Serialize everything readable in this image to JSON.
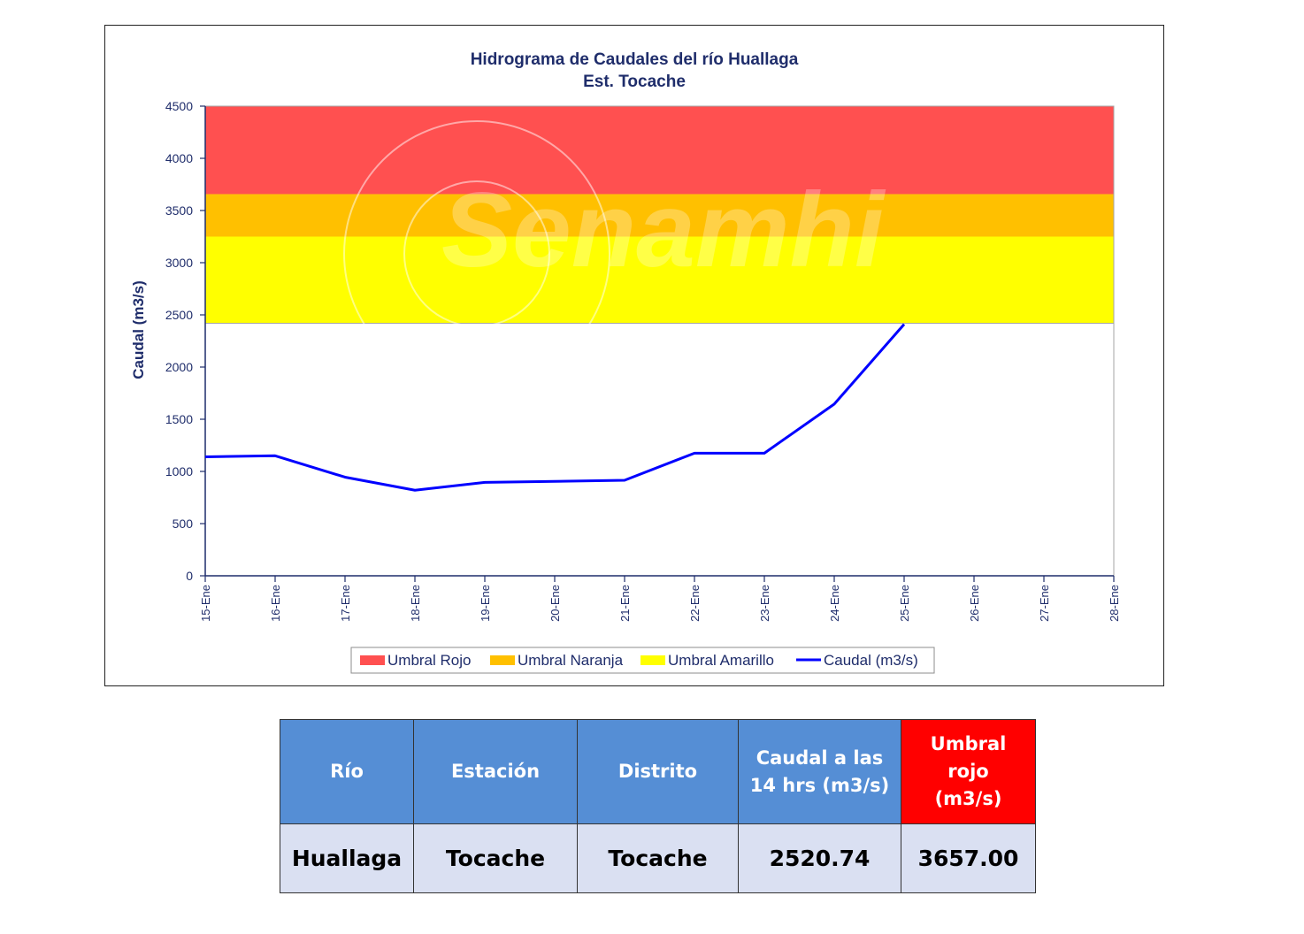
{
  "chart_data": {
    "type": "line",
    "title": "Hidrograma  de Caudales del río Huallaga",
    "subtitle": "Est. Tocache",
    "ylabel": "Caudal (m3/s)",
    "xlabel": "",
    "ylim": [
      0,
      4500
    ],
    "yticks": [
      0,
      500,
      1000,
      1500,
      2000,
      2500,
      3000,
      3500,
      4000,
      4500
    ],
    "categories": [
      "15-Ene",
      "16-Ene",
      "17-Ene",
      "18-Ene",
      "19-Ene",
      "20-Ene",
      "21-Ene",
      "22-Ene",
      "23-Ene",
      "24-Ene",
      "25-Ene",
      "26-Ene",
      "27-Ene",
      "28-Ene"
    ],
    "series": [
      {
        "name": "Caudal (m3/s)",
        "color": "#0000ff",
        "values": [
          1140,
          1150,
          945,
          820,
          895,
          905,
          915,
          1175,
          1175,
          1645,
          2410,
          null,
          null,
          null
        ]
      }
    ],
    "bands": [
      {
        "name": "Umbral Rojo",
        "color": "#ff5050",
        "from": 3657,
        "to": 4500
      },
      {
        "name": "Umbral Naranja",
        "color": "#ffc000",
        "from": 3250,
        "to": 3657
      },
      {
        "name": "Umbral Amarillo",
        "color": "#ffff00",
        "from": 2420,
        "to": 3250
      }
    ],
    "legend": {
      "position": "bottom",
      "entries": [
        "Umbral Rojo",
        "Umbral Naranja",
        "Umbral Amarillo",
        "Caudal (m3/s)"
      ]
    },
    "watermark": "Senamhi",
    "grid": false
  },
  "table": {
    "headers": [
      "Río",
      "Estación",
      "Distrito",
      "Caudal a las 14 hrs (m3/s)",
      "Umbral rojo (m3/s)"
    ],
    "values": [
      "Huallaga",
      "Tocache",
      "Tocache",
      "2520.74",
      "3657.00"
    ],
    "header_color": "#558ed5",
    "highlight_header_color": "#ff0000",
    "row_color": "#dae0f2"
  }
}
